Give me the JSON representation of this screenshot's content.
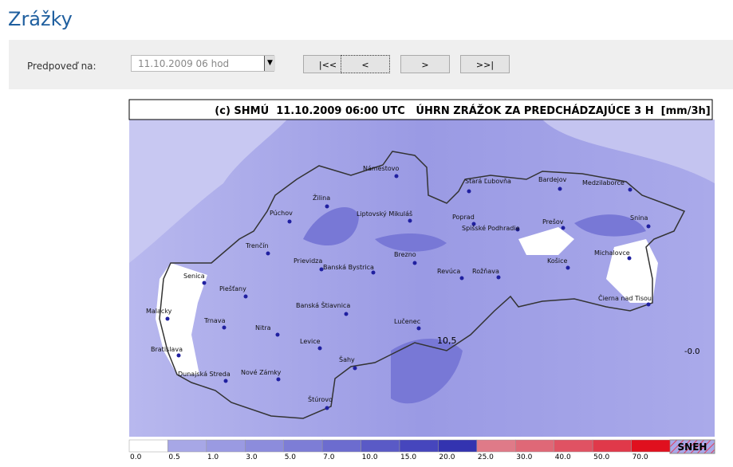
{
  "header": {
    "title": "Zrážky"
  },
  "controls": {
    "label": "Predpoveď na:",
    "select": "11.10.2009 06 hod",
    "buttons": [
      "|<<",
      "<",
      ">",
      ">>|"
    ]
  },
  "map": {
    "title": "(c) SHMÚ  11.10.2009 06:00 UTC   ÚHRN ZRÁŽOK ZA PREDCHÁDZAJÚCE 3 H  [mm/3h]",
    "cities": [
      "Námestovo",
      "Stará Ľubovňa",
      "Bardejov",
      "Medzilaborce",
      "Žilina",
      "Púchov",
      "Liptovský Mikuláš",
      "Poprad",
      "Spišské Podhradie",
      "Prešov",
      "Snina",
      "Trenčín",
      "Prievidza",
      "Banská Bystrica",
      "Brezno",
      "Revúca",
      "Rožňava",
      "Košice",
      "Michalovce",
      "Senica",
      "Piešťany",
      "Banská Štiavnica",
      "Malacky",
      "Trnava",
      "Nitra",
      "Lučenec",
      "Čierna nad Tisou",
      "Bratislava",
      "Levice",
      "Šahy",
      "Dunajská Streda",
      "Nové Zámky",
      "Štúrovo"
    ],
    "annotations": [
      "10,5",
      "-0.0"
    ],
    "legend": [
      {
        "label": "0.0",
        "color": "#ffffff"
      },
      {
        "label": "0.5",
        "color": "#a7a7e6"
      },
      {
        "label": "1.0",
        "color": "#9a9ae2"
      },
      {
        "label": "3.0",
        "color": "#8c8cdc"
      },
      {
        "label": "5.0",
        "color": "#7d7dd6"
      },
      {
        "label": "7.0",
        "color": "#6c6ccf"
      },
      {
        "label": "10.0",
        "color": "#5a5ac6"
      },
      {
        "label": "15.0",
        "color": "#4646bd"
      },
      {
        "label": "20.0",
        "color": "#3333b0"
      },
      {
        "label": "25.0",
        "color": "#df7a88"
      },
      {
        "label": "30.0",
        "color": "#df6877"
      },
      {
        "label": "40.0",
        "color": "#e05263"
      },
      {
        "label": "50.0",
        "color": "#e0394a"
      },
      {
        "label": "70.0",
        "color": "#e0101e"
      }
    ],
    "snow": "SNEH"
  }
}
